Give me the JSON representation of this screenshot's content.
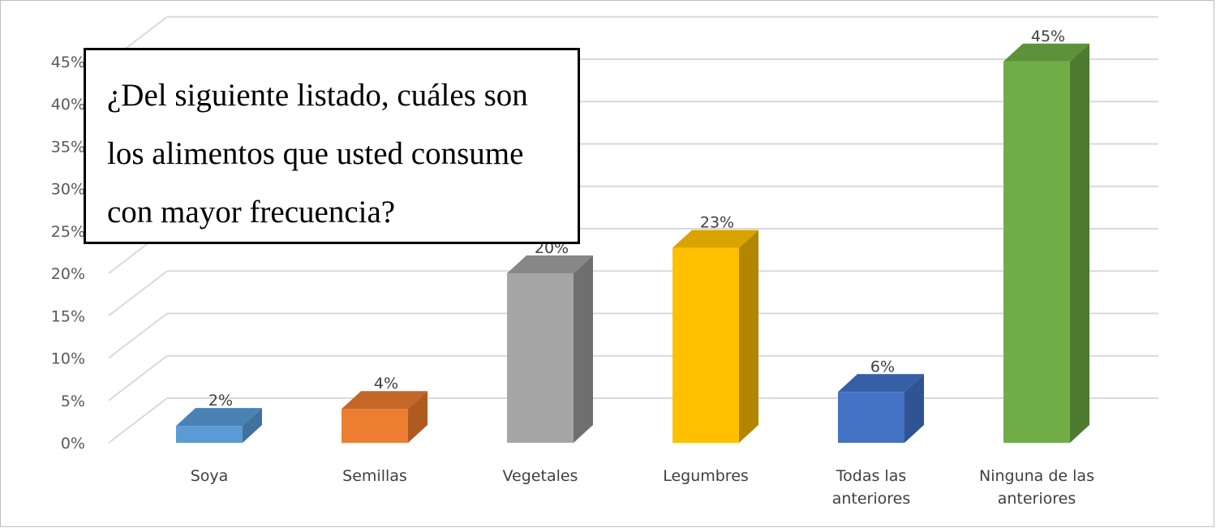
{
  "chart_data": {
    "type": "bar",
    "title_lines": [
      "¿Del siguiente listado, cuáles son",
      "los alimentos que usted consume",
      "con mayor frecuencia?"
    ],
    "categories": [
      [
        "Soya"
      ],
      [
        "Semillas"
      ],
      [
        "Vegetales"
      ],
      [
        "Legumbres"
      ],
      [
        "Todas las",
        "anteriores"
      ],
      [
        "Ninguna de las",
        "anteriores"
      ]
    ],
    "values": [
      2,
      4,
      20,
      23,
      6,
      45
    ],
    "data_labels": [
      "2%",
      "4%",
      "20%",
      "23%",
      "6%",
      "45%"
    ],
    "y_ticks": [
      "0%",
      "5%",
      "10%",
      "15%",
      "20%",
      "25%",
      "30%",
      "35%",
      "40%",
      "45%"
    ],
    "ylim": [
      0,
      45
    ],
    "grid": true,
    "style": "3d-column",
    "colors": [
      {
        "front": "#5b9bd5",
        "side": "#41719c",
        "top": "#4a82b4"
      },
      {
        "front": "#ed7d31",
        "side": "#ae5a21",
        "top": "#c46728"
      },
      {
        "front": "#a5a5a5",
        "side": "#6f6f6f",
        "top": "#878787"
      },
      {
        "front": "#ffc000",
        "side": "#b38600",
        "top": "#d9a300"
      },
      {
        "front": "#4472c4",
        "side": "#2f5393",
        "top": "#365fa6"
      },
      {
        "front": "#70ad47",
        "side": "#4e7a31",
        "top": "#5d913a"
      }
    ]
  }
}
